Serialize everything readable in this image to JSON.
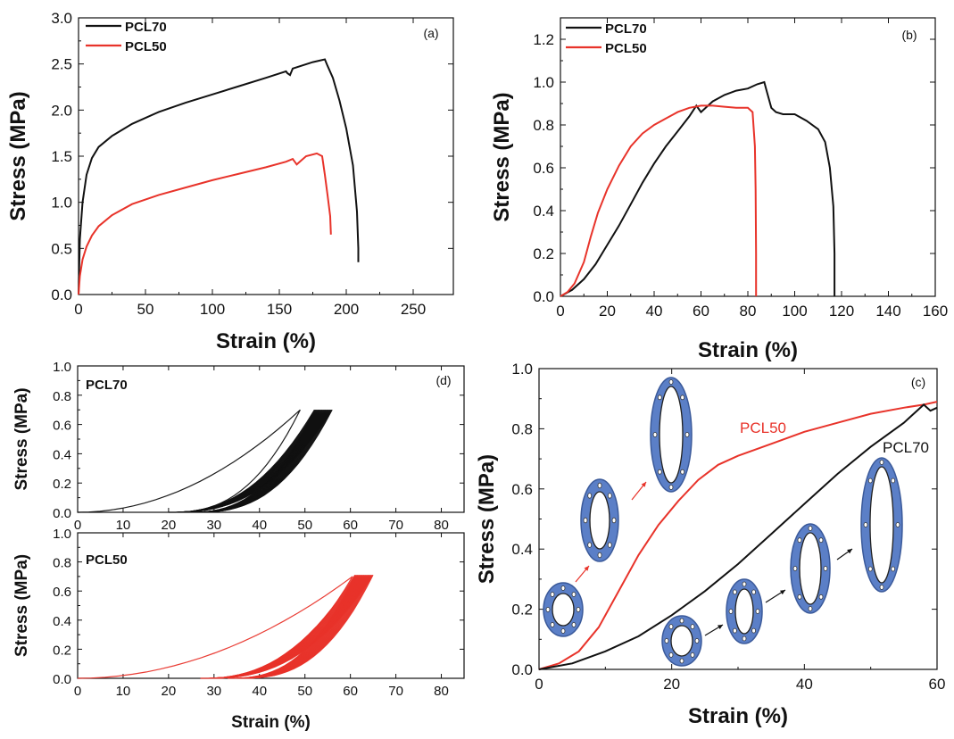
{
  "chart_data": [
    {
      "id": "a",
      "type": "line",
      "panel_label": "(a)",
      "xlabel": "Strain (%)",
      "ylabel": "Stress (MPa)",
      "xlim": [
        0,
        280
      ],
      "ylim": [
        0,
        3.0
      ],
      "xticks": [
        0,
        50,
        100,
        150,
        200,
        250
      ],
      "yticks": [
        "0.0",
        "0.5",
        "1.0",
        "1.5",
        "2.0",
        "2.5",
        "3.0"
      ],
      "legend": [
        "PCL70",
        "PCL50"
      ],
      "legend_position": "top-left",
      "series": [
        {
          "name": "PCL70",
          "color": "#111111",
          "points": [
            [
              0,
              0
            ],
            [
              1,
              0.6
            ],
            [
              3,
              1.0
            ],
            [
              6,
              1.3
            ],
            [
              10,
              1.48
            ],
            [
              15,
              1.6
            ],
            [
              25,
              1.72
            ],
            [
              40,
              1.85
            ],
            [
              60,
              1.98
            ],
            [
              80,
              2.08
            ],
            [
              100,
              2.17
            ],
            [
              120,
              2.26
            ],
            [
              140,
              2.35
            ],
            [
              155,
              2.42
            ],
            [
              156,
              2.4
            ],
            [
              158,
              2.38
            ],
            [
              160,
              2.45
            ],
            [
              175,
              2.52
            ],
            [
              184,
              2.55
            ],
            [
              186,
              2.48
            ],
            [
              190,
              2.35
            ],
            [
              195,
              2.1
            ],
            [
              200,
              1.8
            ],
            [
              205,
              1.4
            ],
            [
              208,
              0.9
            ],
            [
              209,
              0.5
            ],
            [
              209,
              0.35
            ]
          ]
        },
        {
          "name": "PCL50",
          "color": "#e8332a",
          "points": [
            [
              0,
              0
            ],
            [
              1,
              0.2
            ],
            [
              3,
              0.38
            ],
            [
              6,
              0.52
            ],
            [
              10,
              0.64
            ],
            [
              15,
              0.74
            ],
            [
              25,
              0.86
            ],
            [
              40,
              0.98
            ],
            [
              60,
              1.08
            ],
            [
              80,
              1.16
            ],
            [
              100,
              1.24
            ],
            [
              120,
              1.31
            ],
            [
              140,
              1.38
            ],
            [
              155,
              1.44
            ],
            [
              160,
              1.47
            ],
            [
              163,
              1.41
            ],
            [
              166,
              1.45
            ],
            [
              170,
              1.5
            ],
            [
              178,
              1.53
            ],
            [
              182,
              1.5
            ],
            [
              184,
              1.3
            ],
            [
              186,
              1.08
            ],
            [
              188,
              0.85
            ],
            [
              188.5,
              0.65
            ]
          ]
        }
      ]
    },
    {
      "id": "b",
      "type": "line",
      "panel_label": "(b)",
      "xlabel": "Strain (%)",
      "ylabel": "Stress (MPa)",
      "xlim": [
        0,
        160
      ],
      "ylim": [
        0,
        1.3
      ],
      "xticks": [
        0,
        20,
        40,
        60,
        80,
        100,
        120,
        140,
        160
      ],
      "yticks": [
        "0.0",
        "0.2",
        "0.4",
        "0.6",
        "0.8",
        "1.0",
        "1.2"
      ],
      "legend": [
        "PCL70",
        "PCL50"
      ],
      "legend_position": "top-left",
      "series": [
        {
          "name": "PCL70",
          "color": "#111111",
          "points": [
            [
              0,
              0
            ],
            [
              5,
              0.03
            ],
            [
              10,
              0.08
            ],
            [
              15,
              0.15
            ],
            [
              20,
              0.24
            ],
            [
              25,
              0.33
            ],
            [
              30,
              0.43
            ],
            [
              35,
              0.53
            ],
            [
              40,
              0.62
            ],
            [
              45,
              0.7
            ],
            [
              50,
              0.77
            ],
            [
              55,
              0.84
            ],
            [
              58,
              0.89
            ],
            [
              60,
              0.86
            ],
            [
              62,
              0.88
            ],
            [
              65,
              0.91
            ],
            [
              70,
              0.94
            ],
            [
              75,
              0.96
            ],
            [
              80,
              0.97
            ],
            [
              84,
              0.99
            ],
            [
              87,
              1.0
            ],
            [
              88,
              0.96
            ],
            [
              90,
              0.88
            ],
            [
              92,
              0.86
            ],
            [
              95,
              0.85
            ],
            [
              100,
              0.85
            ],
            [
              105,
              0.82
            ],
            [
              110,
              0.78
            ],
            [
              113,
              0.72
            ],
            [
              115,
              0.6
            ],
            [
              116.5,
              0.42
            ],
            [
              117,
              0.2
            ],
            [
              117,
              0
            ]
          ]
        },
        {
          "name": "PCL50",
          "color": "#e8332a",
          "points": [
            [
              0,
              0
            ],
            [
              3,
              0.02
            ],
            [
              6,
              0.06
            ],
            [
              10,
              0.16
            ],
            [
              13,
              0.28
            ],
            [
              16,
              0.39
            ],
            [
              20,
              0.5
            ],
            [
              25,
              0.61
            ],
            [
              30,
              0.7
            ],
            [
              35,
              0.76
            ],
            [
              40,
              0.8
            ],
            [
              45,
              0.83
            ],
            [
              50,
              0.86
            ],
            [
              55,
              0.88
            ],
            [
              60,
              0.89
            ],
            [
              65,
              0.89
            ],
            [
              70,
              0.885
            ],
            [
              75,
              0.88
            ],
            [
              80,
              0.88
            ],
            [
              82,
              0.86
            ],
            [
              83,
              0.7
            ],
            [
              83.3,
              0.5
            ],
            [
              83.5,
              0.2
            ],
            [
              83.5,
              0
            ]
          ]
        }
      ]
    },
    {
      "id": "d-top",
      "type": "line",
      "panel_label": "(d)",
      "inner_label": "PCL70",
      "ylabel": "Stress (MPa)",
      "xlim": [
        0,
        85
      ],
      "ylim": [
        0,
        1.0
      ],
      "xticks": [
        0,
        10,
        20,
        30,
        40,
        50,
        60,
        70,
        80
      ],
      "yticks": [
        "0.0",
        "0.2",
        "0.4",
        "0.6",
        "0.8",
        "1.0"
      ],
      "series": [
        {
          "name": "",
          "color": "#111111",
          "x_start": 0,
          "x_peak": 51,
          "x_return": 20,
          "y_peak": 0.7,
          "cycles": 1
        },
        {
          "name": "",
          "color": "#111111",
          "x_start": 20,
          "x_peak": 56,
          "x_return": 24,
          "y_peak": 0.7,
          "cycles": 30
        }
      ]
    },
    {
      "id": "d-bottom",
      "type": "line",
      "inner_label": "PCL50",
      "xlabel": "Strain (%)",
      "ylabel": "Stress (MPa)",
      "xlim": [
        0,
        85
      ],
      "ylim": [
        0,
        1.0
      ],
      "xticks": [
        0,
        10,
        20,
        30,
        40,
        50,
        60,
        70,
        80
      ],
      "yticks": [
        "0.0",
        "0.2",
        "0.4",
        "0.6",
        "0.8",
        "1.0"
      ],
      "series": [
        {
          "name": "",
          "color": "#e8332a",
          "x_start": 0,
          "x_peak": 63,
          "x_return": 27,
          "y_peak": 0.7,
          "cycles": 1
        },
        {
          "name": "",
          "color": "#e8332a",
          "x_start": 27,
          "x_peak": 65,
          "x_return": 33,
          "y_peak": 0.71,
          "cycles": 30
        }
      ]
    },
    {
      "id": "c",
      "type": "line",
      "panel_label": "(c)",
      "xlabel": "Strain (%)",
      "ylabel": "Stress (MPa)",
      "xlim": [
        0,
        60
      ],
      "ylim": [
        0,
        1.0
      ],
      "xticks": [
        0,
        20,
        40,
        60
      ],
      "yticks": [
        "0.0",
        "0.2",
        "0.4",
        "0.6",
        "0.8",
        "1.0"
      ],
      "annotations": [
        "PCL50",
        "PCL70"
      ],
      "series": [
        {
          "name": "PCL50",
          "color": "#e8332a",
          "points": [
            [
              0,
              0
            ],
            [
              3,
              0.02
            ],
            [
              6,
              0.06
            ],
            [
              9,
              0.14
            ],
            [
              12,
              0.26
            ],
            [
              15,
              0.38
            ],
            [
              18,
              0.48
            ],
            [
              21,
              0.56
            ],
            [
              24,
              0.63
            ],
            [
              27,
              0.68
            ],
            [
              30,
              0.71
            ],
            [
              35,
              0.75
            ],
            [
              40,
              0.79
            ],
            [
              45,
              0.82
            ],
            [
              50,
              0.85
            ],
            [
              55,
              0.87
            ],
            [
              58,
              0.88
            ],
            [
              60,
              0.89
            ]
          ]
        },
        {
          "name": "PCL70",
          "color": "#111111",
          "points": [
            [
              0,
              0
            ],
            [
              5,
              0.02
            ],
            [
              10,
              0.06
            ],
            [
              15,
              0.11
            ],
            [
              20,
              0.18
            ],
            [
              25,
              0.26
            ],
            [
              30,
              0.35
            ],
            [
              35,
              0.45
            ],
            [
              40,
              0.55
            ],
            [
              45,
              0.65
            ],
            [
              50,
              0.74
            ],
            [
              55,
              0.82
            ],
            [
              58,
              0.88
            ],
            [
              59,
              0.86
            ],
            [
              60,
              0.87
            ]
          ]
        }
      ]
    }
  ],
  "colors": {
    "pcl70": "#111111",
    "pcl50": "#e8332a",
    "specimen_fill": "#5b7fc7",
    "specimen_stroke": "#3b5a9a"
  }
}
